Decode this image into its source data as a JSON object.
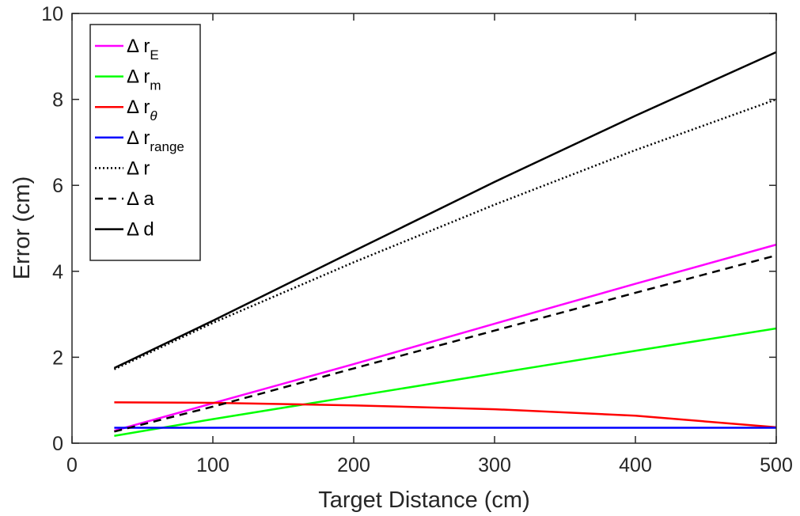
{
  "chart_data": {
    "type": "line",
    "xlabel": "Target Distance (cm)",
    "ylabel": "Error (cm)",
    "xlim": [
      0,
      500
    ],
    "ylim": [
      0,
      10
    ],
    "xticks": [
      "0",
      "100",
      "200",
      "300",
      "400",
      "500"
    ],
    "yticks": [
      "0",
      "2",
      "4",
      "6",
      "8",
      "10"
    ],
    "grid": false,
    "legend_position": "top-left",
    "x": [
      30,
      100,
      200,
      300,
      400,
      500
    ],
    "series": [
      {
        "name": "Δ r_E",
        "symbol": "Δ r",
        "sub": "E",
        "sub_italic": false,
        "color": "#ff00ff",
        "dash": "solid",
        "values": [
          0.29,
          0.93,
          1.84,
          2.78,
          3.71,
          4.62
        ]
      },
      {
        "name": "Δ r_m",
        "symbol": "Δ r",
        "sub": "m",
        "sub_italic": false,
        "color": "#00ff00",
        "dash": "solid",
        "values": [
          0.17,
          0.56,
          1.09,
          1.62,
          2.15,
          2.67
        ]
      },
      {
        "name": "Δ r_θ",
        "symbol": "Δ r",
        "sub": "θ",
        "sub_italic": true,
        "color": "#ff0000",
        "dash": "solid",
        "values": [
          0.95,
          0.94,
          0.88,
          0.79,
          0.64,
          0.37
        ]
      },
      {
        "name": "Δ r_range",
        "symbol": "Δ r",
        "sub": "range",
        "sub_italic": false,
        "color": "#0000ff",
        "dash": "solid",
        "values": [
          0.36,
          0.36,
          0.36,
          0.36,
          0.36,
          0.36
        ]
      },
      {
        "name": "Δ r",
        "symbol": "Δ r",
        "sub": "",
        "sub_italic": false,
        "color": "#000000",
        "dash": "dotted",
        "values": [
          1.72,
          2.8,
          4.21,
          5.55,
          6.82,
          8.0
        ]
      },
      {
        "name": "Δ a",
        "symbol": "Δ a",
        "sub": "",
        "sub_italic": false,
        "color": "#000000",
        "dash": "dashed",
        "values": [
          0.27,
          0.85,
          1.74,
          2.62,
          3.5,
          4.37
        ]
      },
      {
        "name": "Δ d",
        "symbol": "Δ d",
        "sub": "",
        "sub_italic": false,
        "color": "#000000",
        "dash": "solid",
        "values": [
          1.75,
          2.85,
          4.47,
          6.08,
          7.62,
          9.1
        ]
      }
    ]
  }
}
